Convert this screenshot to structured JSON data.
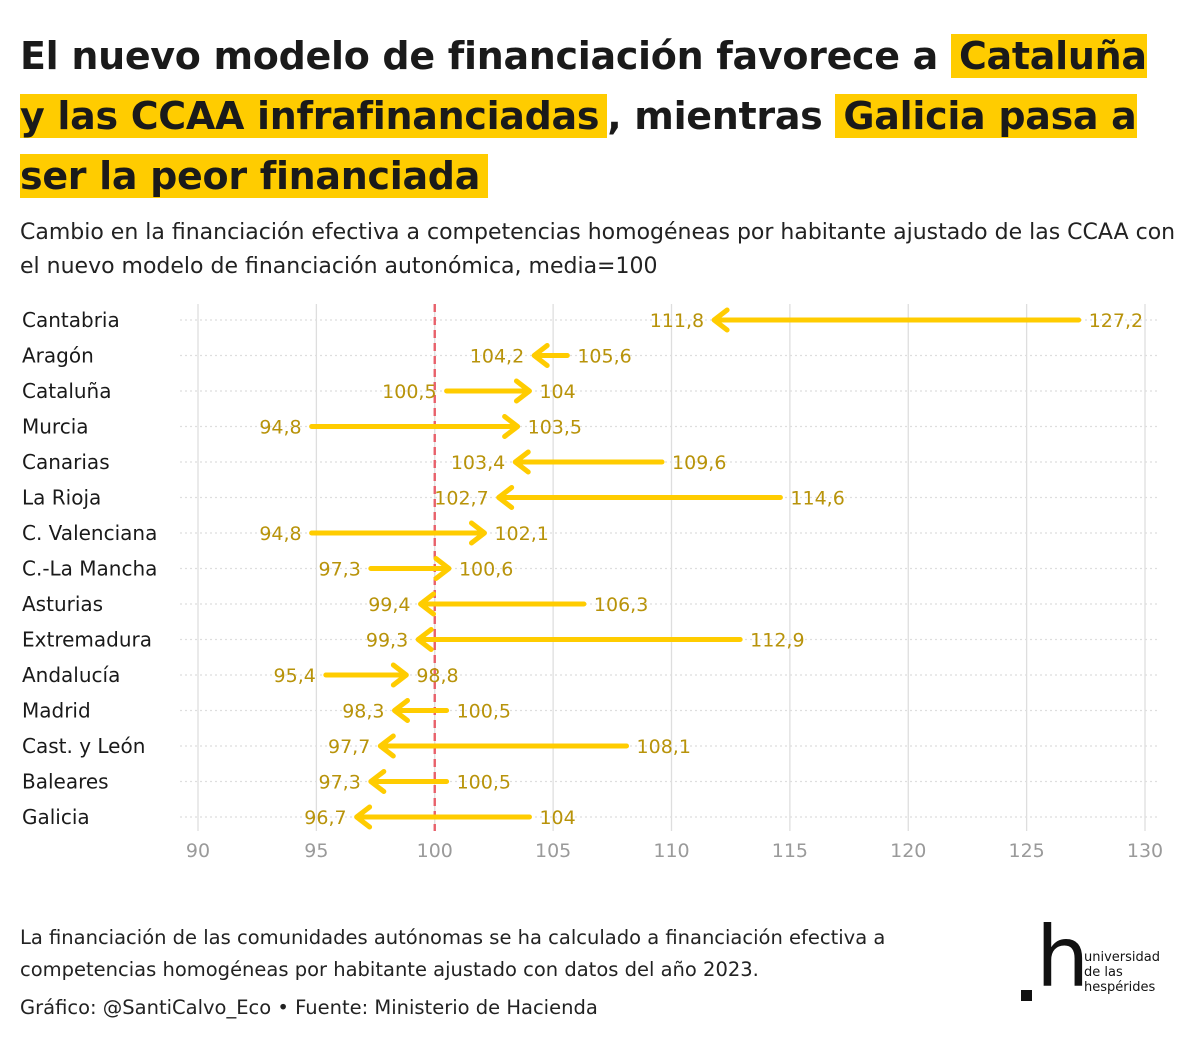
{
  "title": {
    "part1": "El nuevo modelo de financiación favorece a",
    "hl1": "Cataluña y las CCAA infrafinanciadas",
    "part2": ", mientras",
    "hl2": "Galicia pasa a ser la peor financiada"
  },
  "subtitle": "Cambio en la financiación efectiva a competencias homogéneas por habitante ajustado de las CCAA con el nuevo modelo de financiación autonómica, media=100",
  "note": "La financiación de las comunidades autónomas se ha calculado a financiación efectiva a competencias homogéneas por habitante ajustado con datos del año 2023.",
  "credits": "Gráfico: @SantiCalvo_Eco • Fuente: Ministerio de Hacienda",
  "logo": {
    "mark": "h",
    "line1": "universidad",
    "line2": "de las",
    "line3": "hespérides"
  },
  "colors": {
    "arrow": "#ffcc00",
    "label": "#b8930a",
    "reference": "#e8606a",
    "grid": "#dedede",
    "tick": "#9a9a9a"
  },
  "chart_data": {
    "type": "arrow",
    "x_ticks": [
      90,
      95,
      100,
      105,
      110,
      115,
      120,
      125,
      130
    ],
    "xlim": [
      90,
      130
    ],
    "reference_line": 100,
    "grid": true,
    "rows": [
      {
        "name": "Cantabria",
        "from": 127.2,
        "to": 111.8,
        "from_label": "127,2",
        "to_label": "111,8"
      },
      {
        "name": "Aragón",
        "from": 105.6,
        "to": 104.2,
        "from_label": "105,6",
        "to_label": "104,2"
      },
      {
        "name": "Cataluña",
        "from": 100.5,
        "to": 104.0,
        "from_label": "100,5",
        "to_label": "104"
      },
      {
        "name": "Murcia",
        "from": 94.8,
        "to": 103.5,
        "from_label": "94,8",
        "to_label": "103,5"
      },
      {
        "name": "Canarias",
        "from": 109.6,
        "to": 103.4,
        "from_label": "109,6",
        "to_label": "103,4"
      },
      {
        "name": "La Rioja",
        "from": 114.6,
        "to": 102.7,
        "from_label": "114,6",
        "to_label": "102,7"
      },
      {
        "name": "C. Valenciana",
        "from": 94.8,
        "to": 102.1,
        "from_label": "94,8",
        "to_label": "102,1"
      },
      {
        "name": "C.-La Mancha",
        "from": 97.3,
        "to": 100.6,
        "from_label": "97,3",
        "to_label": "100,6"
      },
      {
        "name": "Asturias",
        "from": 106.3,
        "to": 99.4,
        "from_label": "106,3",
        "to_label": "99,4"
      },
      {
        "name": "Extremadura",
        "from": 112.9,
        "to": 99.3,
        "from_label": "112,9",
        "to_label": "99,3"
      },
      {
        "name": "Andalucía",
        "from": 95.4,
        "to": 98.8,
        "from_label": "95,4",
        "to_label": "98,8"
      },
      {
        "name": "Madrid",
        "from": 100.5,
        "to": 98.3,
        "from_label": "100,5",
        "to_label": "98,3"
      },
      {
        "name": "Cast. y León",
        "from": 108.1,
        "to": 97.7,
        "from_label": "108,1",
        "to_label": "97,7"
      },
      {
        "name": "Baleares",
        "from": 100.5,
        "to": 97.3,
        "from_label": "100,5",
        "to_label": "97,3"
      },
      {
        "name": "Galicia",
        "from": 104.0,
        "to": 96.7,
        "from_label": "104",
        "to_label": "96,7"
      }
    ]
  }
}
